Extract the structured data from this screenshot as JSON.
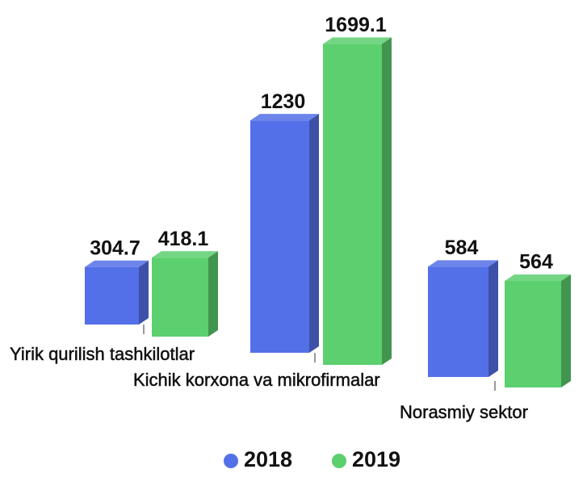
{
  "chart_data": {
    "type": "bar3d",
    "categories": [
      "Yirik qurilish tashkilotlar",
      "Kichik korxona va mikrofirmalar",
      "Norasmiy sektor"
    ],
    "series": [
      {
        "name": "2018",
        "color": "#5470e8",
        "values": [
          304.7,
          1230,
          584
        ]
      },
      {
        "name": "2019",
        "color": "#5ccf6e",
        "values": [
          418.1,
          1699.1,
          564
        ]
      }
    ],
    "legend": "bottom"
  }
}
